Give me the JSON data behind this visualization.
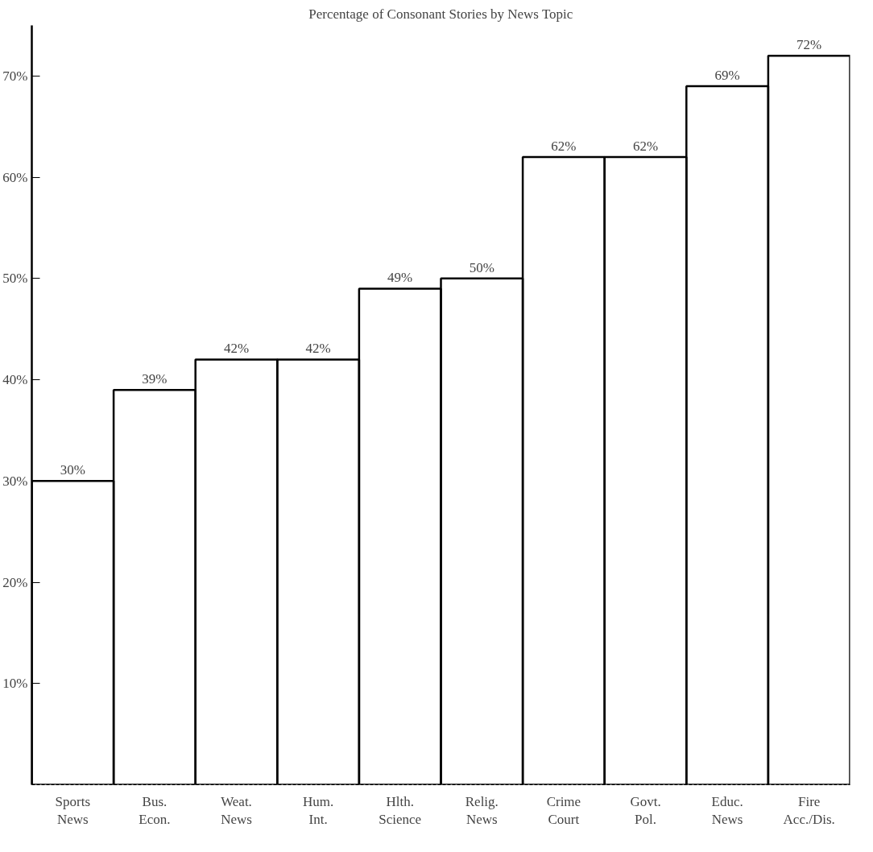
{
  "chart_data": {
    "type": "bar",
    "title": "Percentage of Consonant Stories by News Topic",
    "categories": [
      "Sports\nNews",
      "Bus.\nEcon.",
      "Weat.\nNews",
      "Hum.\nInt.",
      "Hlth.\nScience",
      "Relig.\nNews",
      "Crime\nCourt",
      "Govt.\nPol.",
      "Educ.\nNews",
      "Fire\nAcc./Dis."
    ],
    "values": [
      30,
      39,
      42,
      42,
      49,
      50,
      62,
      62,
      69,
      72
    ],
    "value_labels": [
      "30%",
      "39%",
      "42%",
      "42%",
      "49%",
      "50%",
      "62%",
      "62%",
      "69%",
      "72%"
    ],
    "color": "#000000",
    "ylim": [
      0,
      75
    ],
    "yticks": [
      {
        "value": 10,
        "label": "10%"
      },
      {
        "value": 20,
        "label": "20%"
      },
      {
        "value": 30,
        "label": "30%"
      },
      {
        "value": 40,
        "label": "40%"
      },
      {
        "value": 50,
        "label": "50%"
      },
      {
        "value": 60,
        "label": "60%"
      },
      {
        "value": 70,
        "label": "70%"
      }
    ],
    "grid": false
  }
}
